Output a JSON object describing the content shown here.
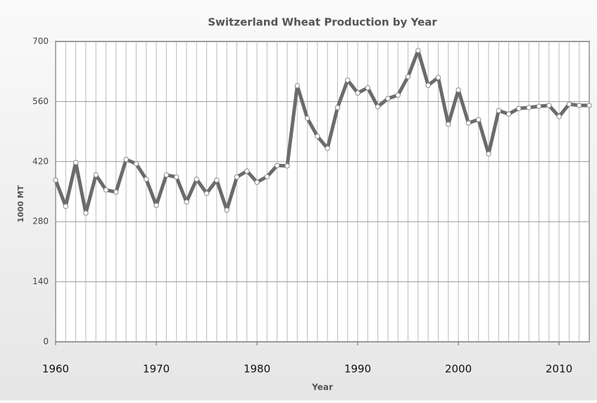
{
  "chart_data": {
    "type": "line",
    "title": "Switzerland Wheat Production by Year",
    "xlabel": "Year",
    "ylabel": "1000 MT",
    "x": [
      1960,
      1961,
      1962,
      1963,
      1964,
      1965,
      1966,
      1967,
      1968,
      1969,
      1970,
      1971,
      1972,
      1973,
      1974,
      1975,
      1976,
      1977,
      1978,
      1979,
      1980,
      1981,
      1982,
      1983,
      1984,
      1985,
      1986,
      1987,
      1988,
      1989,
      1990,
      1991,
      1992,
      1993,
      1994,
      1995,
      1996,
      1997,
      1998,
      1999,
      2000,
      2001,
      2002,
      2003,
      2004,
      2005,
      2006,
      2007,
      2008,
      2009,
      2010,
      2011,
      2012,
      2013
    ],
    "series": [
      {
        "name": "Production",
        "color": "#6b6b6b",
        "values": [
          377,
          316,
          418,
          300,
          389,
          354,
          349,
          425,
          415,
          379,
          318,
          389,
          384,
          326,
          379,
          346,
          377,
          307,
          384,
          398,
          372,
          385,
          411,
          410,
          597,
          521,
          479,
          451,
          546,
          610,
          580,
          592,
          548,
          567,
          575,
          618,
          679,
          598,
          616,
          507,
          587,
          510,
          518,
          438,
          539,
          531,
          544,
          546,
          549,
          551,
          525,
          554,
          551,
          551
        ]
      }
    ],
    "xlim": [
      1960,
      2013
    ],
    "xticks": [
      1960,
      1970,
      1980,
      1990,
      2000,
      2010
    ],
    "ylim": [
      0,
      700
    ],
    "yticks": [
      0,
      140,
      280,
      420,
      560,
      700
    ],
    "grid": true
  }
}
